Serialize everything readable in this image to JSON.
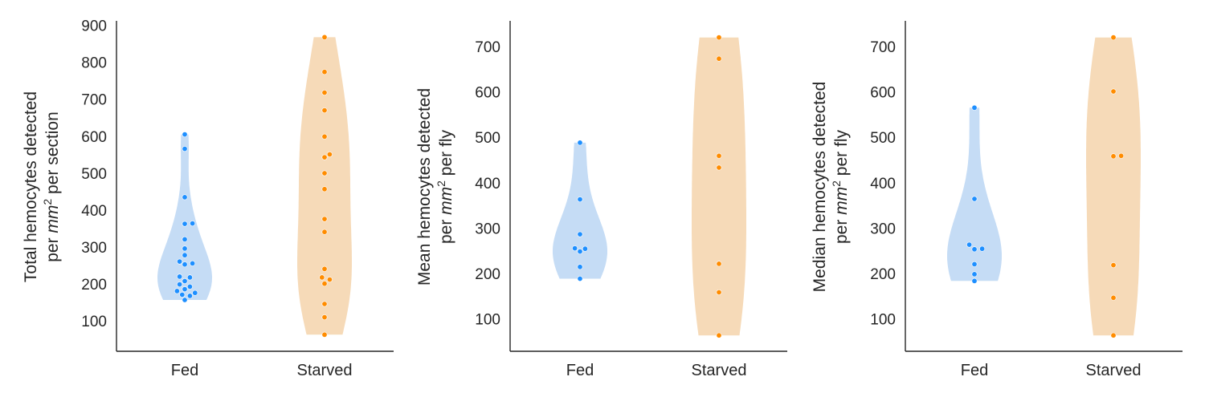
{
  "chart_data": [
    {
      "type": "violin",
      "ylabel_lines": [
        "Total hemocytes detected",
        "per $mm^2$ per section"
      ],
      "ylabel_rich": [
        [
          {
            "t": "Total hemocytes detected"
          }
        ],
        [
          {
            "t": "per "
          },
          {
            "t": "mm",
            "i": true
          },
          {
            "t": "2",
            "sup": true
          },
          {
            "t": " per section"
          }
        ]
      ],
      "ylim": [
        20,
        910
      ],
      "yticks": [
        100,
        200,
        300,
        400,
        500,
        600,
        700,
        800,
        900
      ],
      "categories": [
        "Fed",
        "Starved"
      ],
      "groups": [
        {
          "name": "Fed",
          "values": [
            159,
            170,
            173,
            178,
            183,
            188,
            195,
            201,
            210,
            220,
            222,
            255,
            258,
            263,
            280,
            298,
            323,
            365,
            366,
            437,
            568,
            607
          ]
        },
        {
          "name": "Starved",
          "values": [
            65,
            112,
            148,
            203,
            214,
            220,
            243,
            343,
            378,
            459,
            502,
            545,
            553,
            601,
            672,
            720,
            776,
            870
          ]
        }
      ]
    },
    {
      "type": "violin",
      "ylabel_lines": [
        "Mean hemocytes detected",
        "per $mm^2$ per fly"
      ],
      "ylabel_rich": [
        [
          {
            "t": "Mean hemocytes detected"
          }
        ],
        [
          {
            "t": "per "
          },
          {
            "t": "mm",
            "i": true
          },
          {
            "t": "2",
            "sup": true
          },
          {
            "t": " per fly"
          }
        ]
      ],
      "ylim": [
        30,
        755
      ],
      "yticks": [
        100,
        200,
        300,
        400,
        500,
        600,
        700
      ],
      "categories": [
        "Fed",
        "Starved"
      ],
      "groups": [
        {
          "name": "Fed",
          "values": [
            190,
            216,
            250,
            256,
            257,
            288,
            365,
            490
          ]
        },
        {
          "name": "Starved",
          "values": [
            65,
            160,
            223,
            435,
            461,
            675,
            722
          ]
        }
      ]
    },
    {
      "type": "violin",
      "ylabel_lines": [
        "Median hemocytes detected",
        "per $mm^2$ per fly"
      ],
      "ylabel_rich": [
        [
          {
            "t": "Median hemocytes detected"
          }
        ],
        [
          {
            "t": "per "
          },
          {
            "t": "mm",
            "i": true
          },
          {
            "t": "2",
            "sup": true
          },
          {
            "t": " per fly"
          }
        ]
      ],
      "ylim": [
        30,
        755
      ],
      "yticks": [
        100,
        200,
        300,
        400,
        500,
        600,
        700
      ],
      "categories": [
        "Fed",
        "Starved"
      ],
      "groups": [
        {
          "name": "Fed",
          "values": [
            185,
            200,
            222,
            255,
            256,
            265,
            366,
            567
          ]
        },
        {
          "name": "Starved",
          "values": [
            65,
            148,
            220,
            460,
            461,
            603,
            722
          ]
        }
      ]
    }
  ],
  "colors": {
    "fed_point": "#1e8fff",
    "fed_violin": "#c5dcf5",
    "starved_point": "#ff8c00",
    "starved_violin": "#f6dab8",
    "axis": "#262626"
  }
}
